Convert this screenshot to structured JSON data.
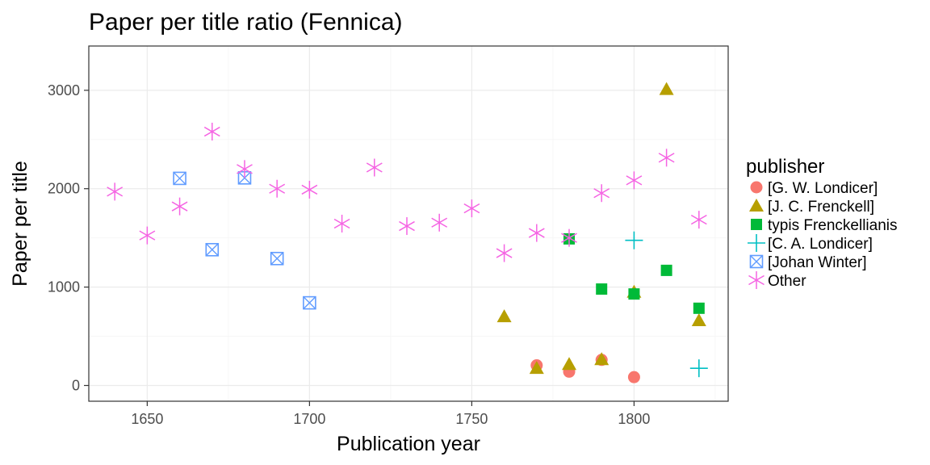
{
  "chart_data": {
    "type": "scatter",
    "title": "Paper per title ratio (Fennica)",
    "xlabel": "Publication year",
    "ylabel": "Paper per title",
    "xlim": [
      1632,
      1829
    ],
    "ylim": [
      -160,
      3450
    ],
    "x_ticks": [
      1650,
      1700,
      1750,
      1800
    ],
    "x_tick_labels": [
      "1650",
      "1700",
      "1750",
      "1800"
    ],
    "y_ticks": [
      0,
      1000,
      2000,
      3000
    ],
    "y_tick_labels": [
      "0",
      "1000",
      "2000",
      "3000"
    ],
    "grid": true,
    "legend": {
      "title": "publisher",
      "position": "right"
    },
    "series": [
      {
        "name": "[G. W. Londicer]",
        "shape": "circle",
        "color": "#F8766D",
        "points": [
          [
            1770,
            205
          ],
          [
            1780,
            140
          ],
          [
            1790,
            260
          ],
          [
            1800,
            85
          ]
        ]
      },
      {
        "name": "[J. C. Frenckell]",
        "shape": "triangle",
        "color": "#B79F00",
        "points": [
          [
            1760,
            700
          ],
          [
            1770,
            175
          ],
          [
            1780,
            215
          ],
          [
            1790,
            265
          ],
          [
            1800,
            950
          ],
          [
            1810,
            3010
          ],
          [
            1820,
            660
          ]
        ]
      },
      {
        "name": "typis Frenckellianis",
        "shape": "square",
        "color": "#00BA38",
        "points": [
          [
            1780,
            1490
          ],
          [
            1790,
            980
          ],
          [
            1800,
            930
          ],
          [
            1810,
            1170
          ],
          [
            1820,
            785
          ]
        ]
      },
      {
        "name": "[C. A. Londicer]",
        "shape": "plus",
        "color": "#00BFC4",
        "points": [
          [
            1800,
            1475
          ],
          [
            1820,
            175
          ]
        ]
      },
      {
        "name": "[Johan Winter]",
        "shape": "boxx",
        "color": "#619CFF",
        "points": [
          [
            1660,
            2105
          ],
          [
            1670,
            1380
          ],
          [
            1680,
            2110
          ],
          [
            1690,
            1290
          ],
          [
            1700,
            840
          ]
        ]
      },
      {
        "name": "Other",
        "shape": "asterisk",
        "color": "#F564E3",
        "points": [
          [
            1640,
            1970
          ],
          [
            1650,
            1525
          ],
          [
            1660,
            1820
          ],
          [
            1670,
            2580
          ],
          [
            1680,
            2200
          ],
          [
            1690,
            2000
          ],
          [
            1700,
            1990
          ],
          [
            1710,
            1645
          ],
          [
            1720,
            2215
          ],
          [
            1730,
            1620
          ],
          [
            1740,
            1655
          ],
          [
            1750,
            1800
          ],
          [
            1760,
            1345
          ],
          [
            1770,
            1550
          ],
          [
            1780,
            1500
          ],
          [
            1790,
            1955
          ],
          [
            1800,
            2085
          ],
          [
            1810,
            2315
          ],
          [
            1820,
            1685
          ]
        ]
      }
    ]
  }
}
